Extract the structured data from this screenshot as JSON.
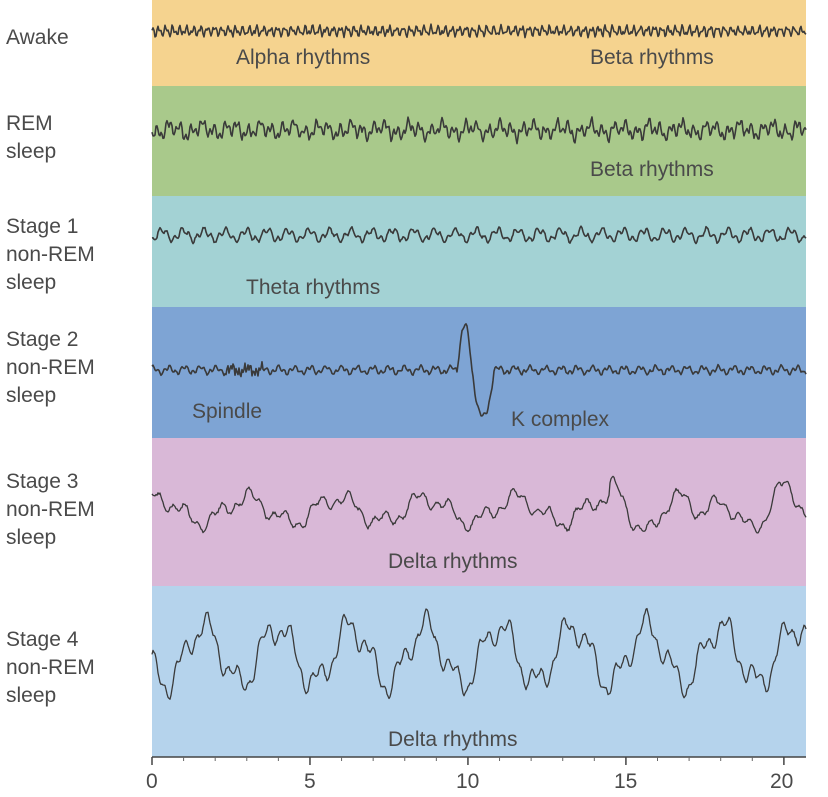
{
  "stages": [
    {
      "label": "Awake",
      "color": "#f5d38f",
      "annotations": [
        "Alpha rhythms",
        "Beta rhythms"
      ]
    },
    {
      "label": "REM\nsleep",
      "color": "#a9c98b",
      "annotations": [
        "Beta rhythms"
      ]
    },
    {
      "label": "Stage 1\nnon-REM\nsleep",
      "color": "#a3d2d4",
      "annotations": [
        "Theta rhythms"
      ]
    },
    {
      "label": "Stage 2\nnon-REM\nsleep",
      "color": "#7ea4d4",
      "annotations": [
        "Spindle",
        "K complex"
      ]
    },
    {
      "label": "Stage 3\nnon-REM\nsleep",
      "color": "#d9b8d7",
      "annotations": [
        "Delta rhythms"
      ]
    },
    {
      "label": "Stage 4\nnon-REM\nsleep",
      "color": "#b5d3ec",
      "annotations": [
        "Delta rhythms"
      ]
    }
  ],
  "axis": {
    "ticks": [
      "0",
      "5",
      "10",
      "15",
      "20"
    ],
    "tick_values": [
      0,
      5,
      10,
      15,
      20
    ],
    "range": [
      0,
      20.7
    ]
  },
  "trace_color": "#3a3a3a"
}
